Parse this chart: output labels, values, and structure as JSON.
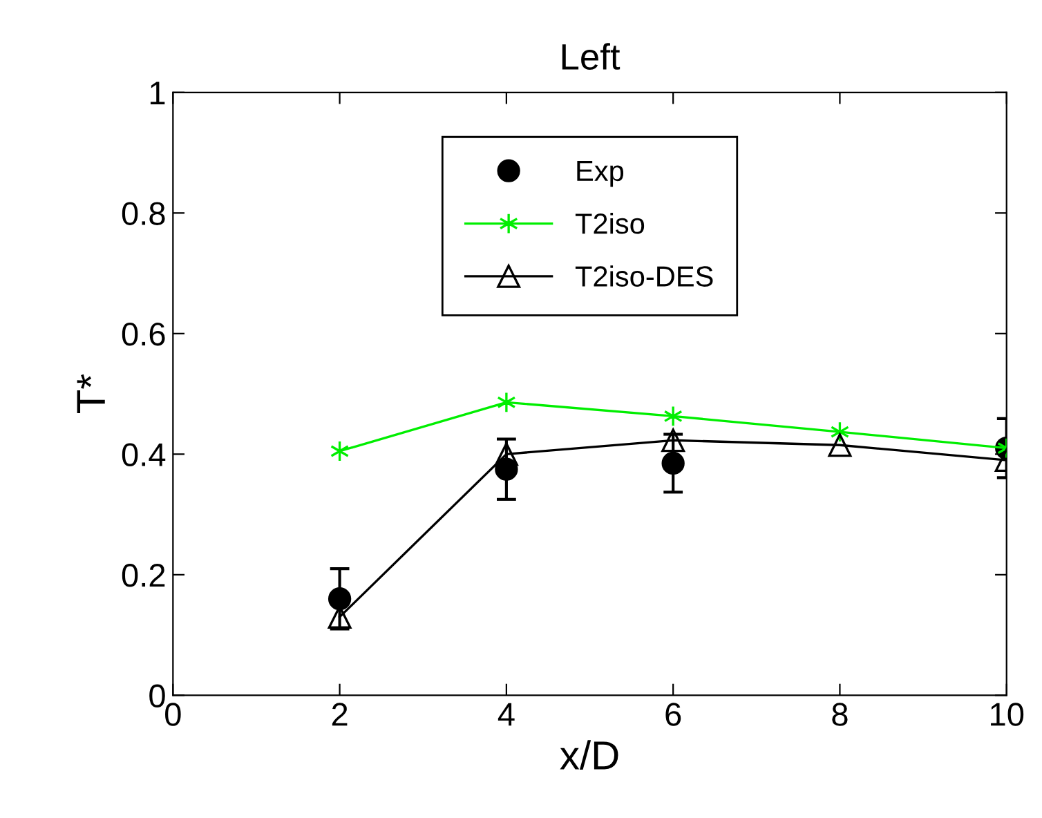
{
  "chart_data": {
    "type": "line",
    "title": "Left",
    "xlabel": "x/D",
    "ylabel": "T*",
    "xlim": [
      0,
      10
    ],
    "xticks": [
      0,
      2,
      4,
      6,
      8,
      10
    ],
    "ylim": [
      0,
      1
    ],
    "yticks": [
      0,
      0.2,
      0.4,
      0.6,
      0.8,
      1
    ],
    "grid": false,
    "legend": "top",
    "series": [
      {
        "name": "Exp",
        "type": "scatter",
        "marker": "circle",
        "color": "#000000",
        "x": [
          2,
          4,
          6,
          10
        ],
        "values": [
          0.16,
          0.375,
          0.385,
          0.41
        ],
        "errors": [
          0.05,
          0.05,
          0.048,
          0.049
        ]
      },
      {
        "name": "T2iso",
        "marker": "cross",
        "color": "#00ee00",
        "x": [
          2,
          4,
          6,
          8,
          10
        ],
        "values": [
          0.405,
          0.486,
          0.463,
          0.437,
          0.41
        ]
      },
      {
        "name": "T2iso-DES",
        "marker": "triangle",
        "color": "#000000",
        "x": [
          2,
          4,
          6,
          8,
          10
        ],
        "values": [
          0.13,
          0.4,
          0.423,
          0.415,
          0.39
        ]
      }
    ]
  }
}
